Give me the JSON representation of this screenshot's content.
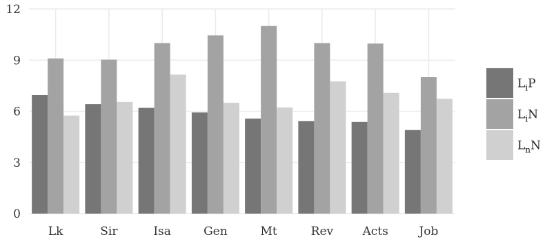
{
  "chart_data": {
    "type": "bar",
    "title": "",
    "xlabel": "",
    "ylabel": "",
    "ylim": [
      0,
      12
    ],
    "yticks": [
      0,
      3,
      6,
      9,
      12
    ],
    "grid": true,
    "legend_position": "right",
    "categories": [
      "Lk",
      "Sir",
      "Isa",
      "Gen",
      "Mt",
      "Rev",
      "Acts",
      "Job"
    ],
    "series": [
      {
        "name": "LiP",
        "label_main": "L",
        "label_sub": "i",
        "label_tail": "P",
        "color": "#767676",
        "values": [
          6.95,
          6.42,
          6.2,
          5.93,
          5.57,
          5.42,
          5.38,
          4.9
        ]
      },
      {
        "name": "LiN",
        "label_main": "L",
        "label_sub": "i",
        "label_tail": "N",
        "color": "#a3a3a3",
        "values": [
          9.1,
          9.03,
          10.0,
          10.45,
          11.0,
          10.0,
          9.97,
          8.0
        ]
      },
      {
        "name": "LnN",
        "label_main": "L",
        "label_sub": "n",
        "label_tail": "N",
        "color": "#d0d0d0",
        "values": [
          5.75,
          6.55,
          8.15,
          6.5,
          6.22,
          7.75,
          7.08,
          6.73
        ]
      }
    ]
  }
}
